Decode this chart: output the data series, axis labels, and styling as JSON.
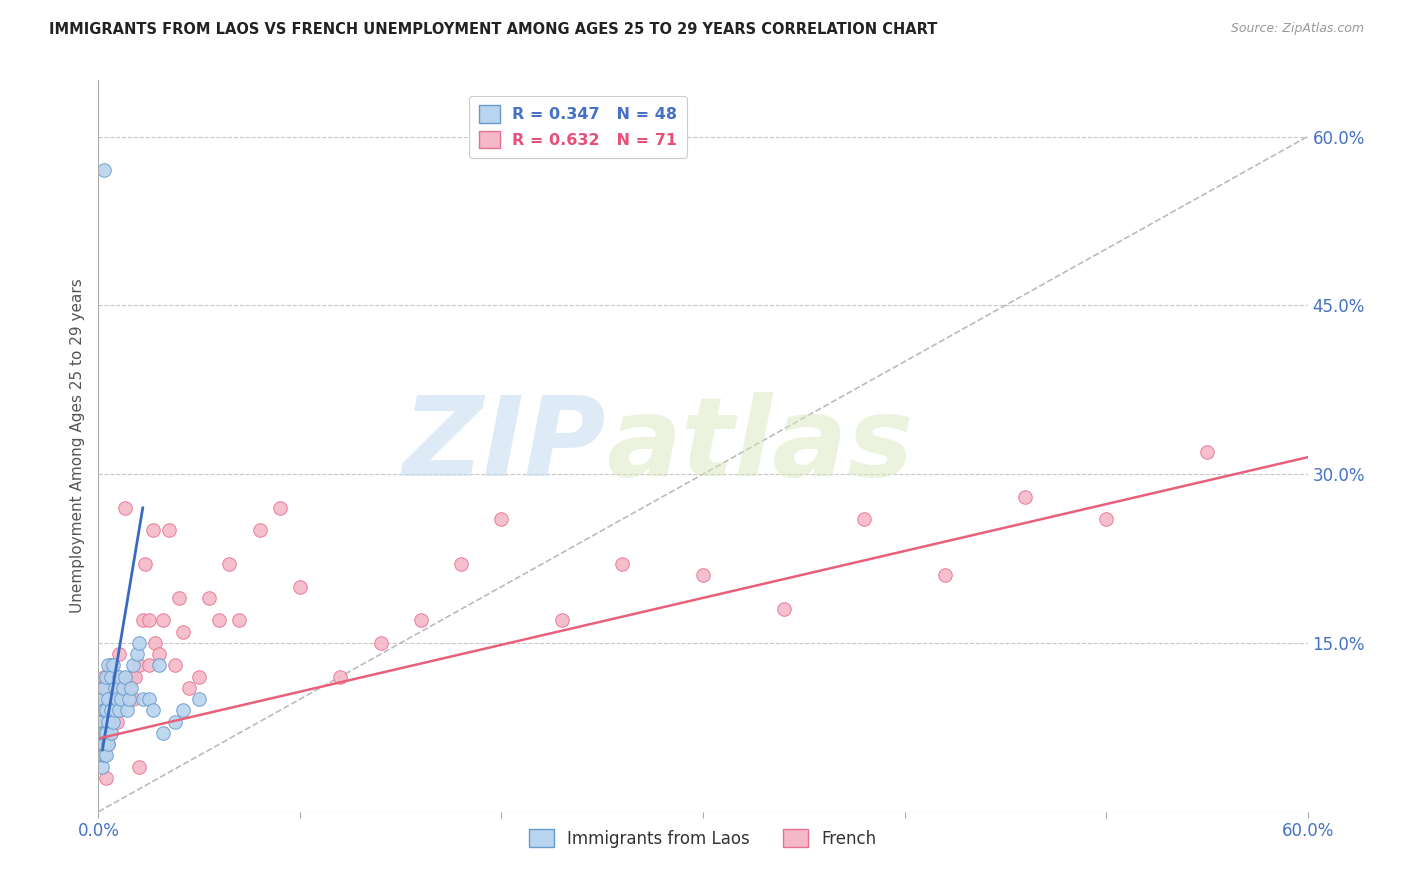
{
  "title": "IMMIGRANTS FROM LAOS VS FRENCH UNEMPLOYMENT AMONG AGES 25 TO 29 YEARS CORRELATION CHART",
  "source": "Source: ZipAtlas.com",
  "ylabel": "Unemployment Among Ages 25 to 29 years",
  "xlim": [
    0.0,
    0.6
  ],
  "ylim": [
    0.0,
    0.65
  ],
  "yticks": [
    0.0,
    0.15,
    0.3,
    0.45,
    0.6
  ],
  "ytick_labels": [
    "",
    "15.0%",
    "30.0%",
    "45.0%",
    "60.0%"
  ],
  "xtick_vals": [
    0.0,
    0.1,
    0.2,
    0.3,
    0.4,
    0.5,
    0.6
  ],
  "xtick_labels": [
    "0.0%",
    "",
    "",
    "",
    "",
    "",
    "60.0%"
  ],
  "background_color": "#ffffff",
  "grid_color": "#c8c8c8",
  "watermark_zip": "ZIP",
  "watermark_atlas": "atlas",
  "series": [
    {
      "name": "Immigrants from Laos",
      "R": 0.347,
      "N": 48,
      "color": "#b8d4ee",
      "edge_color": "#6699cc",
      "line_color": "#4472c4",
      "x": [
        0.001,
        0.001,
        0.001,
        0.002,
        0.002,
        0.002,
        0.002,
        0.003,
        0.003,
        0.003,
        0.003,
        0.003,
        0.004,
        0.004,
        0.004,
        0.004,
        0.005,
        0.005,
        0.005,
        0.005,
        0.006,
        0.006,
        0.006,
        0.007,
        0.007,
        0.008,
        0.008,
        0.009,
        0.01,
        0.01,
        0.011,
        0.012,
        0.013,
        0.014,
        0.015,
        0.016,
        0.017,
        0.019,
        0.02,
        0.022,
        0.025,
        0.027,
        0.03,
        0.032,
        0.038,
        0.042,
        0.05,
        0.003
      ],
      "y": [
        0.05,
        0.06,
        0.08,
        0.04,
        0.06,
        0.07,
        0.1,
        0.05,
        0.06,
        0.07,
        0.09,
        0.11,
        0.05,
        0.07,
        0.09,
        0.12,
        0.06,
        0.08,
        0.1,
        0.13,
        0.07,
        0.09,
        0.12,
        0.08,
        0.13,
        0.09,
        0.11,
        0.1,
        0.09,
        0.12,
        0.1,
        0.11,
        0.12,
        0.09,
        0.1,
        0.11,
        0.13,
        0.14,
        0.15,
        0.1,
        0.1,
        0.09,
        0.13,
        0.07,
        0.08,
        0.09,
        0.1,
        0.57
      ]
    },
    {
      "name": "French",
      "R": 0.632,
      "N": 71,
      "color": "#f5b8c8",
      "edge_color": "#e87090",
      "line_color": "#e8507a",
      "x": [
        0.001,
        0.001,
        0.002,
        0.002,
        0.002,
        0.003,
        0.003,
        0.003,
        0.004,
        0.004,
        0.005,
        0.005,
        0.005,
        0.006,
        0.006,
        0.006,
        0.007,
        0.007,
        0.008,
        0.008,
        0.009,
        0.009,
        0.01,
        0.01,
        0.011,
        0.012,
        0.013,
        0.014,
        0.015,
        0.016,
        0.017,
        0.018,
        0.02,
        0.02,
        0.022,
        0.023,
        0.025,
        0.025,
        0.027,
        0.028,
        0.03,
        0.032,
        0.035,
        0.038,
        0.04,
        0.042,
        0.045,
        0.05,
        0.055,
        0.06,
        0.065,
        0.07,
        0.08,
        0.09,
        0.1,
        0.12,
        0.14,
        0.16,
        0.18,
        0.2,
        0.23,
        0.26,
        0.3,
        0.34,
        0.38,
        0.42,
        0.46,
        0.5,
        0.55,
        0.002,
        0.004
      ],
      "y": [
        0.06,
        0.09,
        0.05,
        0.08,
        0.11,
        0.06,
        0.09,
        0.12,
        0.07,
        0.1,
        0.06,
        0.09,
        0.12,
        0.07,
        0.1,
        0.13,
        0.08,
        0.11,
        0.09,
        0.12,
        0.08,
        0.12,
        0.1,
        0.14,
        0.11,
        0.11,
        0.27,
        0.1,
        0.11,
        0.12,
        0.1,
        0.12,
        0.13,
        0.04,
        0.17,
        0.22,
        0.13,
        0.17,
        0.25,
        0.15,
        0.14,
        0.17,
        0.25,
        0.13,
        0.19,
        0.16,
        0.11,
        0.12,
        0.19,
        0.17,
        0.22,
        0.17,
        0.25,
        0.27,
        0.2,
        0.12,
        0.15,
        0.17,
        0.22,
        0.26,
        0.17,
        0.22,
        0.21,
        0.18,
        0.26,
        0.21,
        0.28,
        0.26,
        0.32,
        0.05,
        0.03
      ]
    }
  ],
  "blue_line": {
    "x_start": 0.002,
    "x_end": 0.022,
    "y_start": 0.055,
    "y_end": 0.27,
    "color": "#3a6abf",
    "style": "-",
    "lw": 2.0
  },
  "grey_dashed_line": {
    "x_start": 0.0,
    "x_end": 0.6,
    "y_start": 0.0,
    "y_end": 0.6,
    "color": "#bbbbbb",
    "style": "--",
    "lw": 1.2
  },
  "pink_line": {
    "x_start": 0.0,
    "x_end": 0.6,
    "y_start": 0.065,
    "y_end": 0.315,
    "color": "#e8607a",
    "style": "-",
    "lw": 1.8
  }
}
